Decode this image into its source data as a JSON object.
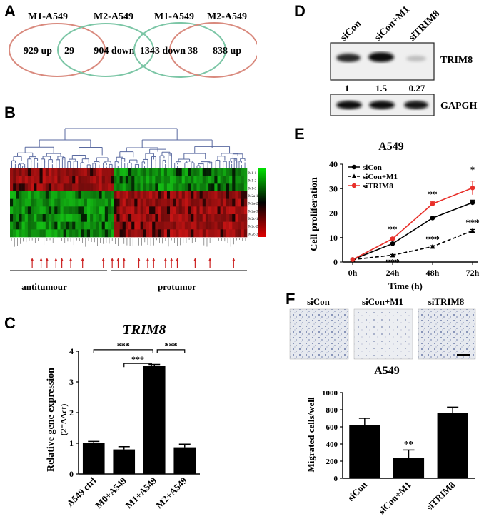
{
  "panels": {
    "A": {
      "label": "A",
      "venn_left": {
        "set1": "M1-A549",
        "set2": "M2-A549",
        "left": "929 up",
        "overlap": "29",
        "right": "904 down"
      },
      "venn_right": {
        "set1": "M1-A549",
        "set2": "M2-A549",
        "left": "1343 down",
        "overlap": "38",
        "right": "838 up"
      },
      "colors": {
        "red_circle": "#d98a7e",
        "green_circle": "#7cc6a6"
      }
    },
    "B": {
      "label": "B",
      "row_labels": [
        "M1-1",
        "M1-2",
        "M1-3",
        "M2a-1",
        "M2a-2",
        "M2a-3",
        "M2c-1",
        "M2c-2",
        "M2c-3"
      ],
      "group_left": "antitumour",
      "group_right": "protumor",
      "colors": {
        "high": "#00cc00",
        "low": "#cc0000",
        "arrow": "#cc2222"
      }
    },
    "C": {
      "label": "C",
      "chart_data": {
        "type": "bar",
        "title": "TRIM8",
        "ylabel": "Relative gene expression",
        "ylabel2": "(2⁻ΔΔct)",
        "categories": [
          "A549 ctrl",
          "M0+A549",
          "M1+A549",
          "M2+A549"
        ],
        "values": [
          1.0,
          0.8,
          3.52,
          0.87
        ],
        "errors": [
          0.06,
          0.09,
          0.05,
          0.1
        ],
        "ylim": [
          0,
          4
        ],
        "yticks": [
          "0",
          "1",
          "2",
          "3",
          "4"
        ],
        "sig": [
          "***",
          "***",
          "***"
        ]
      }
    },
    "D": {
      "label": "D",
      "lanes": [
        "siCon",
        "siCon+M1",
        "siTRIM8"
      ],
      "quant": [
        "1",
        "1.5",
        "0.27"
      ],
      "band1": "TRIM8",
      "band2": "GAPGH"
    },
    "E": {
      "label": "E",
      "chart_data": {
        "type": "line",
        "title": "A549",
        "xlabel": "Time (h)",
        "ylabel": "Cell proliferation",
        "categories": [
          "0h",
          "24h",
          "48h",
          "72h"
        ],
        "ylim": [
          0,
          40
        ],
        "yticks": [
          "0",
          "10",
          "20",
          "30",
          "40"
        ],
        "series": [
          {
            "name": "siCon",
            "values": [
              1,
              7.5,
              18,
              24.3
            ],
            "errors": [
              0,
              0.4,
              0.8,
              1.0
            ],
            "color": "#000000"
          },
          {
            "name": "siCon+M1",
            "values": [
              1,
              2.8,
              6.3,
              12.8
            ],
            "errors": [
              0,
              0.3,
              0.4,
              0.5
            ],
            "color": "#000000"
          },
          {
            "name": "siTRIM8",
            "values": [
              1,
              9.5,
              23.8,
              30.3
            ],
            "errors": [
              0,
              0.5,
              0.8,
              2.8
            ],
            "color": "#e8302a"
          }
        ],
        "annotations": [
          "**",
          "***",
          "**",
          "***",
          "*",
          "***"
        ]
      }
    },
    "F": {
      "label": "F",
      "image_labels": [
        "siCon",
        "siCon+M1",
        "siTRIM8"
      ],
      "chart_data": {
        "type": "bar",
        "title": "A549",
        "ylabel": "Migrated cells/well",
        "categories": [
          "siCon",
          "siCon+M1",
          "siTRIM8"
        ],
        "values": [
          625,
          235,
          765
        ],
        "errors": [
          75,
          95,
          65
        ],
        "ylim": [
          0,
          1000
        ],
        "yticks": [
          "0",
          "200",
          "400",
          "600",
          "800",
          "1000"
        ],
        "sig": [
          "**"
        ]
      }
    }
  }
}
